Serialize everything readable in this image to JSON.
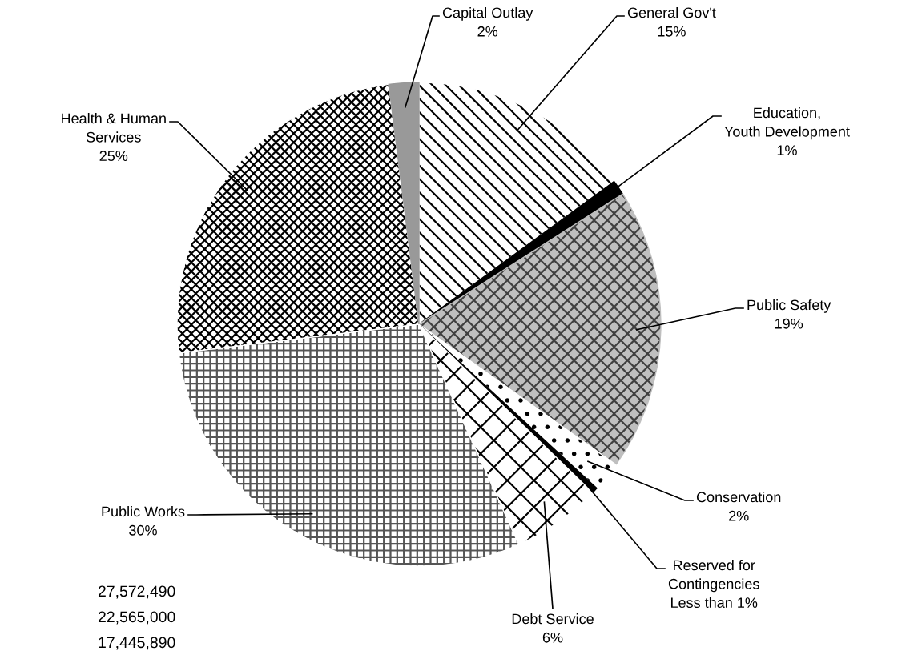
{
  "chart_data": {
    "type": "pie",
    "categories": [
      "General Gov't",
      "Education,\nYouth Development",
      "Public Safety",
      "Conservation",
      "Reserved for\nContingencies",
      "Debt Service",
      "Public Works",
      "Health & Human\nServices",
      "Capital Outlay"
    ],
    "values": [
      15,
      1,
      19,
      2,
      0.4,
      6,
      30,
      25,
      2
    ],
    "value_labels": [
      "15%",
      "1%",
      "19%",
      "2%",
      "Less than 1%",
      "6%",
      "30%",
      "25%",
      "2%"
    ],
    "colors": [
      "#ffffff",
      "#000000",
      "#bfbfbf",
      "#ffffff",
      "#000000",
      "#ffffff",
      "#ffffff",
      "#ffffff",
      "#999999"
    ],
    "annotations": [
      "27,572,490",
      "22,565,000",
      "17,445,890"
    ]
  }
}
